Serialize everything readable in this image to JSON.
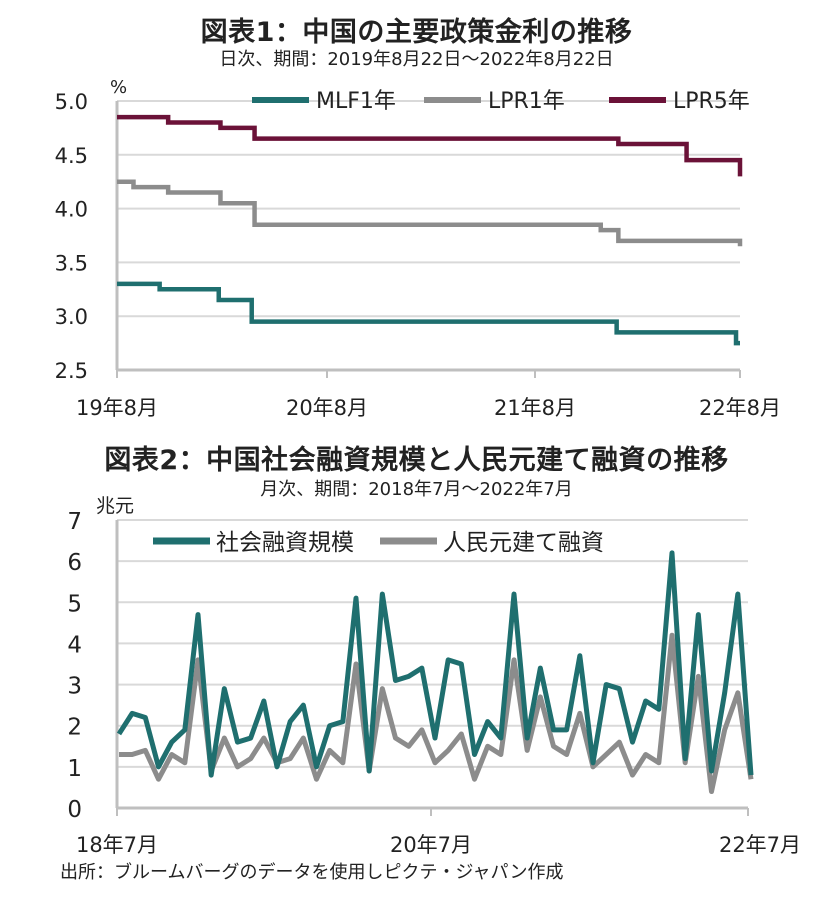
{
  "chart_data": [
    {
      "type": "line",
      "title": "図表1：中国の主要政策金利の推移",
      "subtitle": "日次、期間：2019年8月22日～2022年8月22日",
      "ylabel": "%",
      "ylim": [
        2.5,
        5.0
      ],
      "yticks": [
        "2.5",
        "3.0",
        "3.5",
        "4.0",
        "4.5",
        "5.0"
      ],
      "xticks": [
        "19年8月",
        "20年8月",
        "21年8月",
        "22年8月"
      ],
      "grid": true,
      "legend_position": "top",
      "series": [
        {
          "name": "MLF1年",
          "color": "#1f6f6f",
          "steps": [
            [
              "2019-08-22",
              3.3
            ],
            [
              "2019-11-05",
              3.25
            ],
            [
              "2020-02-17",
              3.15
            ],
            [
              "2020-04-15",
              2.95
            ],
            [
              "2022-01-17",
              2.85
            ],
            [
              "2022-08-15",
              2.75
            ]
          ]
        },
        {
          "name": "LPR1年",
          "color": "#8c8c8c",
          "steps": [
            [
              "2019-08-22",
              4.25
            ],
            [
              "2019-09-20",
              4.2
            ],
            [
              "2019-11-20",
              4.15
            ],
            [
              "2020-02-20",
              4.05
            ],
            [
              "2020-04-20",
              3.85
            ],
            [
              "2021-12-20",
              3.8
            ],
            [
              "2022-01-20",
              3.7
            ],
            [
              "2022-08-22",
              3.65
            ]
          ]
        },
        {
          "name": "LPR5年",
          "color": "#6b1238",
          "steps": [
            [
              "2019-08-22",
              4.85
            ],
            [
              "2019-11-20",
              4.8
            ],
            [
              "2020-02-20",
              4.75
            ],
            [
              "2020-04-20",
              4.65
            ],
            [
              "2022-01-20",
              4.6
            ],
            [
              "2022-05-20",
              4.45
            ],
            [
              "2022-08-22",
              4.3
            ]
          ]
        }
      ],
      "end_date": "2022-08-22"
    },
    {
      "type": "line",
      "title": "図表2：中国社会融資規模と人民元建て融資の推移",
      "subtitle": "月次、期間：2018年7月～2022年7月",
      "ylabel": "兆元",
      "ylim": [
        0,
        7
      ],
      "yticks": [
        "0",
        "1",
        "2",
        "3",
        "4",
        "5",
        "6",
        "7"
      ],
      "xticks": [
        "18年7月",
        "20年7月",
        "22年7月"
      ],
      "grid": true,
      "legend_position": "top",
      "start_month": "2018-07",
      "series": [
        {
          "name": "社会融資規模",
          "color": "#1f6f6f",
          "values": [
            1.8,
            2.3,
            2.2,
            1.0,
            1.6,
            1.9,
            4.7,
            0.8,
            2.9,
            1.6,
            1.7,
            2.6,
            1.0,
            2.1,
            2.5,
            1.0,
            2.0,
            2.1,
            5.1,
            0.9,
            5.2,
            3.1,
            3.2,
            3.4,
            1.7,
            3.6,
            3.5,
            1.3,
            2.1,
            1.7,
            5.2,
            1.7,
            3.4,
            1.9,
            1.9,
            3.7,
            1.1,
            3.0,
            2.9,
            1.6,
            2.6,
            2.4,
            6.2,
            1.2,
            4.7,
            0.9,
            2.8,
            5.2,
            0.8
          ]
        },
        {
          "name": "人民元建て融資",
          "color": "#8c8c8c",
          "values": [
            1.3,
            1.3,
            1.4,
            0.7,
            1.3,
            1.1,
            3.6,
            0.9,
            1.7,
            1.0,
            1.2,
            1.7,
            1.1,
            1.2,
            1.7,
            0.7,
            1.4,
            1.1,
            3.5,
            0.9,
            2.9,
            1.7,
            1.5,
            1.9,
            1.1,
            1.4,
            1.8,
            0.7,
            1.5,
            1.3,
            3.6,
            1.4,
            2.7,
            1.5,
            1.3,
            2.3,
            1.0,
            1.3,
            1.6,
            0.8,
            1.3,
            1.1,
            4.2,
            1.1,
            3.2,
            0.4,
            1.9,
            2.8,
            0.7
          ]
        }
      ]
    }
  ],
  "source": "出所：ブルームバーグのデータを使用しピクテ・ジャパン作成"
}
